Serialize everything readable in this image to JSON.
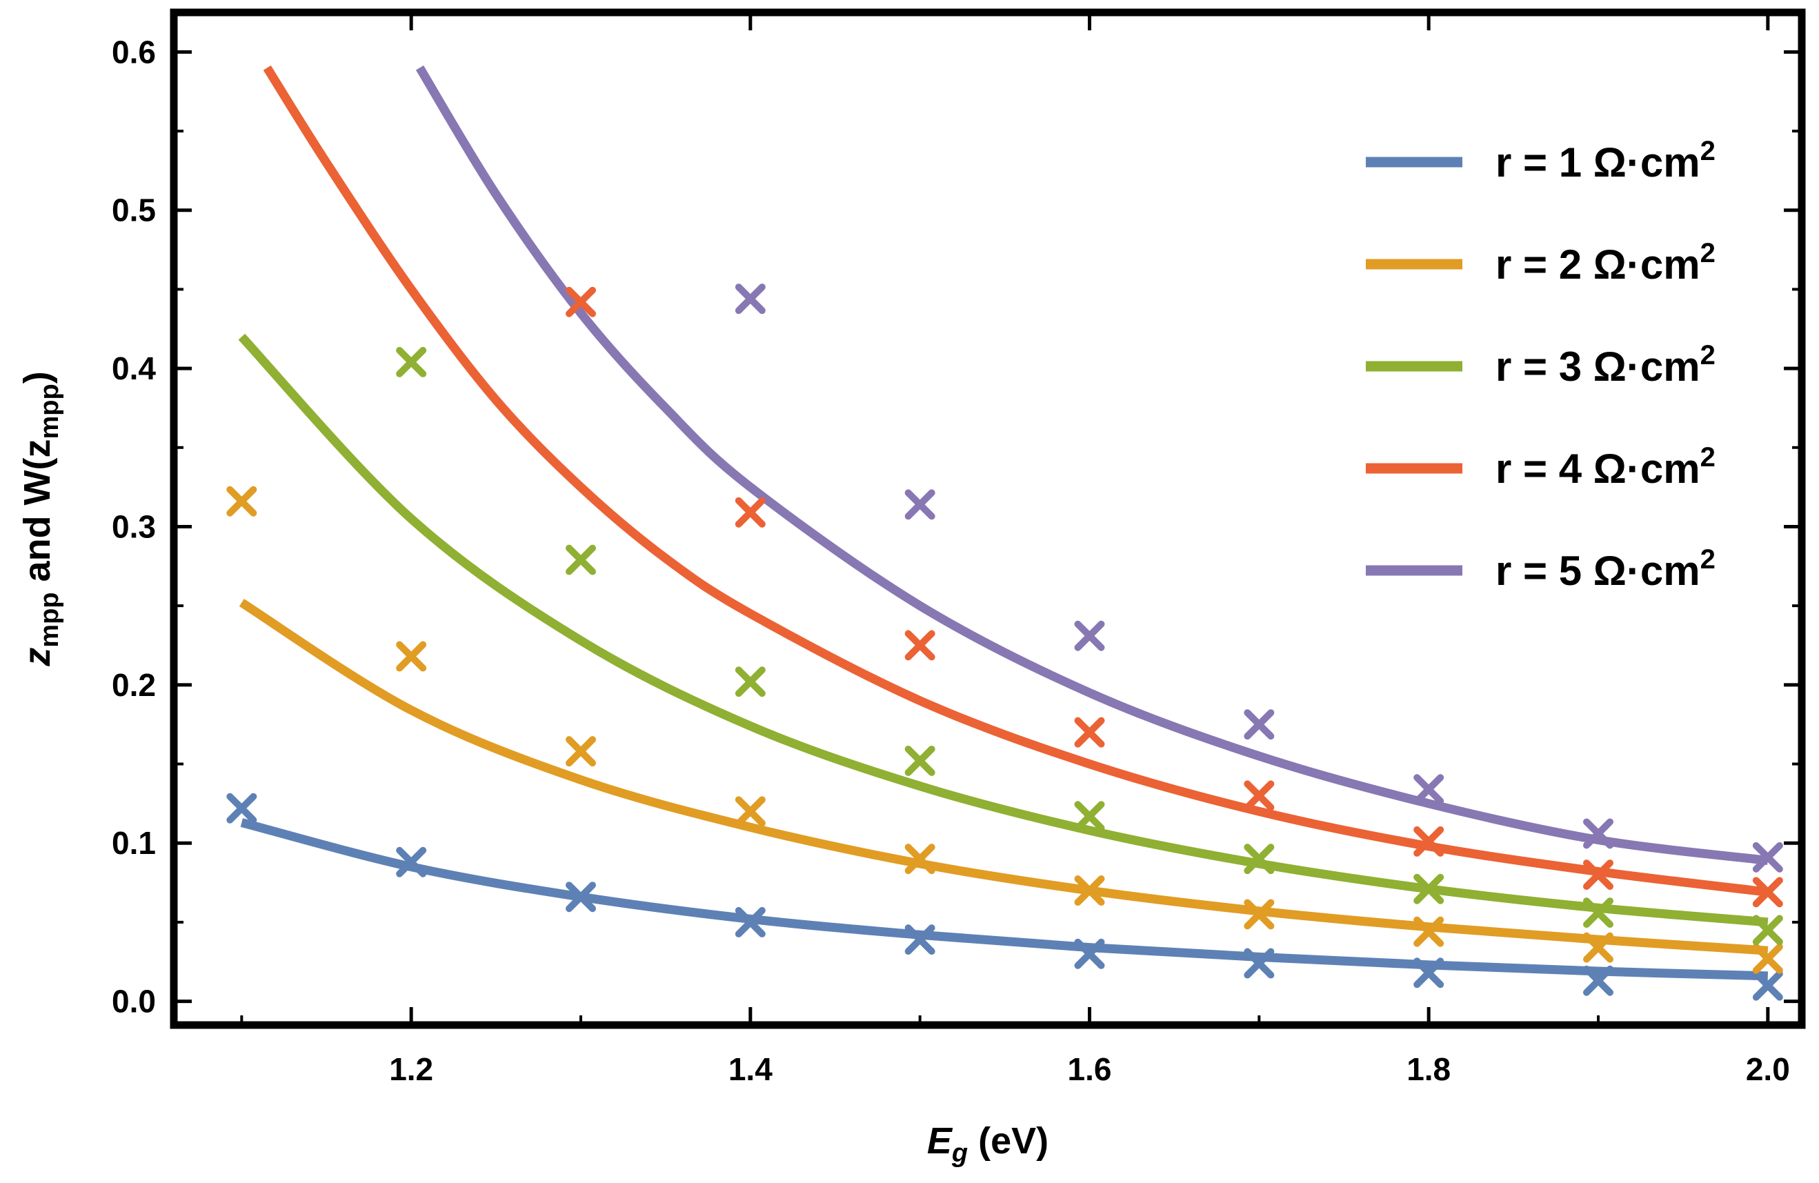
{
  "chart_data": {
    "type": "line",
    "title": "",
    "xlabel": {
      "main": "E",
      "sub": "g",
      "rest": " (eV)"
    },
    "ylabel": {
      "p1": "z",
      "s1": "mpp",
      "p2": " and W(z",
      "s2": "mpp",
      "p3": ")"
    },
    "xlim": [
      1.06,
      2.02
    ],
    "ylim": [
      -0.015,
      0.625
    ],
    "x_ticks": [
      1.2,
      1.4,
      1.6,
      1.8,
      2.0
    ],
    "x_tick_labels": [
      "1.2",
      "1.4",
      "1.6",
      "1.8",
      "2.0"
    ],
    "y_ticks": [
      0.0,
      0.1,
      0.2,
      0.3,
      0.4,
      0.5,
      0.6
    ],
    "y_tick_labels": [
      "0.0",
      "0.1",
      "0.2",
      "0.3",
      "0.4",
      "0.5",
      "0.6"
    ],
    "grid": false,
    "legend_position": "top-right",
    "series": [
      {
        "name": "r = 1 Ω·cm",
        "sup": "2",
        "color": "#5E81B5",
        "curve_x": [
          1.1,
          1.2,
          1.3,
          1.4,
          1.5,
          1.6,
          1.7,
          1.8,
          1.9,
          2.0
        ],
        "curve_y": [
          0.113,
          0.085,
          0.066,
          0.052,
          0.042,
          0.034,
          0.028,
          0.023,
          0.019,
          0.016
        ],
        "points_x": [
          1.1,
          1.2,
          1.3,
          1.4,
          1.5,
          1.6,
          1.7,
          1.8,
          1.9,
          2.0
        ],
        "points_y": [
          0.122,
          0.088,
          0.066,
          0.05,
          0.039,
          0.03,
          0.024,
          0.018,
          0.013,
          0.01
        ]
      },
      {
        "name": "r = 2 Ω·cm",
        "sup": "2",
        "color": "#E19C24",
        "curve_x": [
          1.1,
          1.2,
          1.3,
          1.4,
          1.5,
          1.6,
          1.7,
          1.8,
          1.9,
          2.0
        ],
        "curve_y": [
          0.252,
          0.184,
          0.14,
          0.11,
          0.087,
          0.07,
          0.057,
          0.047,
          0.039,
          0.032
        ],
        "points_x": [
          1.1,
          1.2,
          1.3,
          1.4,
          1.5,
          1.6,
          1.7,
          1.8,
          1.9,
          2.0
        ],
        "points_y": [
          0.316,
          0.218,
          0.158,
          0.12,
          0.09,
          0.07,
          0.055,
          0.044,
          0.034,
          0.027
        ]
      },
      {
        "name": "r = 3 Ω·cm",
        "sup": "2",
        "color": "#8FB032",
        "curve_x": [
          1.1,
          1.2,
          1.3,
          1.4,
          1.5,
          1.6,
          1.7,
          1.8,
          1.9,
          2.0
        ],
        "curve_y": [
          0.42,
          0.305,
          0.228,
          0.174,
          0.136,
          0.108,
          0.087,
          0.071,
          0.059,
          0.05
        ],
        "points_x": [
          1.2,
          1.3,
          1.4,
          1.5,
          1.6,
          1.7,
          1.8,
          1.9,
          2.0
        ],
        "points_y": [
          0.404,
          0.279,
          0.202,
          0.152,
          0.117,
          0.09,
          0.071,
          0.056,
          0.045
        ]
      },
      {
        "name": "r = 4 Ω·cm",
        "sup": "2",
        "color": "#EB6235",
        "curve_x": [
          1.115,
          1.15,
          1.2,
          1.25,
          1.3,
          1.35,
          1.4,
          1.5,
          1.6,
          1.7,
          1.8,
          1.9,
          2.0
        ],
        "curve_y": [
          0.59,
          0.53,
          0.45,
          0.38,
          0.325,
          0.28,
          0.245,
          0.19,
          0.15,
          0.12,
          0.098,
          0.082,
          0.069
        ],
        "points_x": [
          1.3,
          1.4,
          1.5,
          1.6,
          1.7,
          1.8,
          1.9,
          2.0
        ],
        "points_y": [
          0.442,
          0.309,
          0.225,
          0.17,
          0.13,
          0.101,
          0.08,
          0.069
        ]
      },
      {
        "name": "r = 5 Ω·cm",
        "sup": "2",
        "color": "#8778B3",
        "curve_x": [
          1.205,
          1.25,
          1.3,
          1.35,
          1.4,
          1.5,
          1.6,
          1.7,
          1.8,
          1.9,
          2.0
        ],
        "curve_y": [
          0.59,
          0.51,
          0.435,
          0.375,
          0.325,
          0.25,
          0.195,
          0.155,
          0.125,
          0.102,
          0.089
        ],
        "points_x": [
          1.4,
          1.5,
          1.6,
          1.7,
          1.8,
          1.9,
          2.0
        ],
        "points_y": [
          0.444,
          0.314,
          0.231,
          0.175,
          0.134,
          0.106,
          0.091
        ]
      }
    ]
  }
}
